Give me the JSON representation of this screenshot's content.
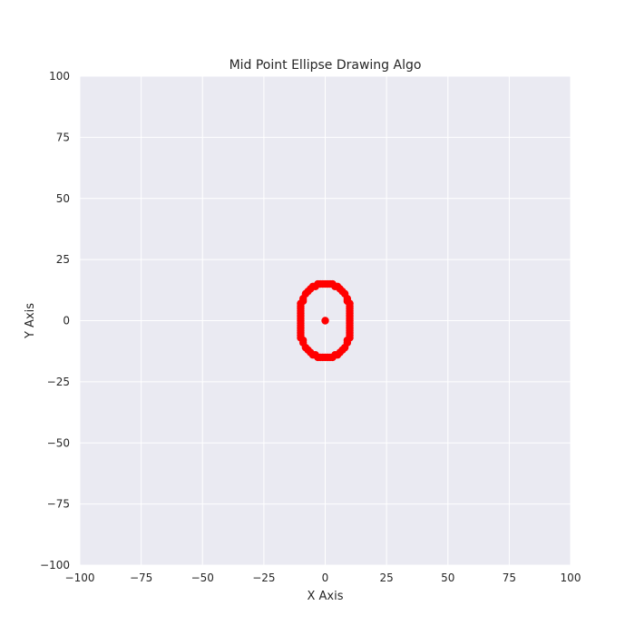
{
  "chart_data": {
    "type": "scatter",
    "title": "Mid Point Ellipse Drawing Algo",
    "xlabel": "X Axis",
    "ylabel": "Y Axis",
    "xlim": [
      -100,
      100
    ],
    "ylim": [
      -100,
      100
    ],
    "x_ticks": [
      -100,
      -75,
      -50,
      -25,
      0,
      25,
      50,
      75,
      100
    ],
    "y_ticks": [
      -100,
      -75,
      -50,
      -25,
      0,
      25,
      50,
      75,
      100
    ],
    "x_tick_labels": [
      "−100",
      "−75",
      "−50",
      "−25",
      "0",
      "25",
      "50",
      "75",
      "100"
    ],
    "y_tick_labels": [
      "−100",
      "−75",
      "−50",
      "−25",
      "0",
      "25",
      "50",
      "75",
      "100"
    ],
    "grid": true,
    "background_color": "#eaeaf2",
    "grid_color": "#ffffff",
    "marker_color": "#ff0000",
    "series": [
      {
        "center": [
          0,
          0
        ],
        "points": [
          [
            0,
            15
          ],
          [
            1,
            15
          ],
          [
            2,
            15
          ],
          [
            3,
            15
          ],
          [
            4,
            14
          ],
          [
            5,
            14
          ],
          [
            6,
            13
          ],
          [
            7,
            12
          ],
          [
            8,
            11
          ],
          [
            9,
            9
          ],
          [
            9,
            8
          ],
          [
            10,
            7
          ],
          [
            10,
            6
          ],
          [
            10,
            5
          ],
          [
            10,
            4
          ],
          [
            10,
            3
          ],
          [
            10,
            2
          ],
          [
            10,
            1
          ],
          [
            10,
            0
          ],
          [
            10,
            -1
          ],
          [
            10,
            -2
          ],
          [
            10,
            -3
          ],
          [
            10,
            -4
          ],
          [
            10,
            -5
          ],
          [
            10,
            -6
          ],
          [
            10,
            -7
          ],
          [
            9,
            -8
          ],
          [
            9,
            -9
          ],
          [
            8,
            -11
          ],
          [
            7,
            -12
          ],
          [
            6,
            -13
          ],
          [
            5,
            -14
          ],
          [
            4,
            -14
          ],
          [
            3,
            -15
          ],
          [
            2,
            -15
          ],
          [
            1,
            -15
          ],
          [
            0,
            -15
          ],
          [
            -1,
            -15
          ],
          [
            -2,
            -15
          ],
          [
            -3,
            -15
          ],
          [
            -4,
            -14
          ],
          [
            -5,
            -14
          ],
          [
            -6,
            -13
          ],
          [
            -7,
            -12
          ],
          [
            -8,
            -11
          ],
          [
            -9,
            -9
          ],
          [
            -9,
            -8
          ],
          [
            -10,
            -7
          ],
          [
            -10,
            -6
          ],
          [
            -10,
            -5
          ],
          [
            -10,
            -4
          ],
          [
            -10,
            -3
          ],
          [
            -10,
            -2
          ],
          [
            -10,
            -1
          ],
          [
            -10,
            0
          ],
          [
            -10,
            1
          ],
          [
            -10,
            2
          ],
          [
            -10,
            3
          ],
          [
            -10,
            4
          ],
          [
            -10,
            5
          ],
          [
            -10,
            6
          ],
          [
            -10,
            7
          ],
          [
            -9,
            8
          ],
          [
            -9,
            9
          ],
          [
            -8,
            11
          ],
          [
            -7,
            12
          ],
          [
            -6,
            13
          ],
          [
            -5,
            14
          ],
          [
            -4,
            14
          ],
          [
            -3,
            15
          ],
          [
            -2,
            15
          ],
          [
            -1,
            15
          ]
        ]
      }
    ]
  }
}
